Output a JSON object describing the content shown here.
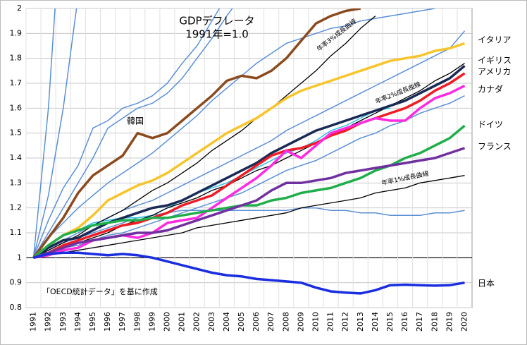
{
  "chart_data": {
    "type": "line",
    "title": "GDPデフレータ",
    "subtitle": "1991年=1.0",
    "source_note": "「OECD統計データ」を基に作成",
    "categories": [
      "1991",
      "1992",
      "1993",
      "1994",
      "1995",
      "1996",
      "1997",
      "1998",
      "1999",
      "2000",
      "2001",
      "2002",
      "2003",
      "2004",
      "2005",
      "2006",
      "2007",
      "2008",
      "2009",
      "2010",
      "2011",
      "2012",
      "2013",
      "2014",
      "2015",
      "2016",
      "2017",
      "2018",
      "2019",
      "2020"
    ],
    "ylim": [
      0.8,
      2
    ],
    "yticks": [
      0.8,
      0.9,
      1,
      1.1,
      1.2,
      1.3,
      1.4,
      1.5,
      1.6,
      1.7,
      1.8,
      1.9,
      2
    ],
    "grid": true,
    "hline": 1,
    "series": [
      {
        "color": "#5b8fd6",
        "values": [
          1,
          1.6,
          2.5,
          null,
          null,
          null,
          null,
          null,
          null,
          null,
          null,
          null,
          null,
          null,
          null,
          null,
          null,
          null,
          null,
          null,
          null,
          null,
          null,
          null,
          null,
          null,
          null,
          null,
          null,
          null
        ]
      },
      {
        "color": "#5b8fd6",
        "values": [
          1,
          1.25,
          1.6,
          2.05,
          null,
          null,
          null,
          null,
          null,
          null,
          null,
          null,
          null,
          null,
          null,
          null,
          null,
          null,
          null,
          null,
          null,
          null,
          null,
          null,
          null,
          null,
          null,
          null,
          null,
          null
        ]
      },
      {
        "color": "#5b8fd6",
        "values": [
          1,
          1.15,
          1.28,
          1.37,
          1.52,
          1.55,
          1.6,
          1.62,
          1.65,
          1.7,
          1.78,
          1.85,
          1.95,
          2.05,
          null,
          null,
          null,
          null,
          null,
          null,
          null,
          null,
          null,
          null,
          null,
          null,
          null,
          null,
          null,
          null
        ]
      },
      {
        "color": "#5b8fd6",
        "values": [
          1,
          1.1,
          1.2,
          1.3,
          1.4,
          1.52,
          1.56,
          1.6,
          1.62,
          1.66,
          1.72,
          1.8,
          1.88,
          1.97,
          2.05,
          null,
          null,
          null,
          null,
          null,
          null,
          null,
          null,
          null,
          null,
          null,
          null,
          null,
          null,
          null
        ]
      },
      {
        "color": "#5b8fd6",
        "values": [
          1,
          1.08,
          1.14,
          1.2,
          1.25,
          1.3,
          1.34,
          1.38,
          1.42,
          1.47,
          1.52,
          1.57,
          1.63,
          1.68,
          1.73,
          1.78,
          1.82,
          1.86,
          1.88,
          1.9,
          1.92,
          1.93,
          1.95,
          1.96,
          1.97,
          1.98,
          1.99,
          2,
          null,
          null
        ]
      },
      {
        "color": "#5b8fd6",
        "values": [
          1,
          1.04,
          1.07,
          1.1,
          1.13,
          1.16,
          1.19,
          1.21,
          1.23,
          1.26,
          1.29,
          1.32,
          1.35,
          1.38,
          1.41,
          1.44,
          1.47,
          1.51,
          1.54,
          1.57,
          1.6,
          1.63,
          1.66,
          1.69,
          1.72,
          1.75,
          1.78,
          1.81,
          1.84,
          1.91
        ]
      },
      {
        "color": "#5b8fd6",
        "values": [
          1,
          1.03,
          1.06,
          1.08,
          1.1,
          1.12,
          1.14,
          1.16,
          1.17,
          1.18,
          1.19,
          1.19,
          1.19,
          1.19,
          1.19,
          1.19,
          1.19,
          1.19,
          1.2,
          1.2,
          1.19,
          1.19,
          1.18,
          1.18,
          1.17,
          1.17,
          1.17,
          1.18,
          1.18,
          1.19
        ]
      },
      {
        "color": "#5b8fd6",
        "values": [
          1,
          1.02,
          1.04,
          1.05,
          1.07,
          1.09,
          1.1,
          1.12,
          1.14,
          1.16,
          1.18,
          1.2,
          1.22,
          1.24,
          1.26,
          1.29,
          1.32,
          1.35,
          1.37,
          1.39,
          1.42,
          1.45,
          1.48,
          1.5,
          1.53,
          1.55,
          1.58,
          1.6,
          1.62,
          1.65
        ]
      },
      {
        "color": "#2ec4e6",
        "values": [
          1,
          1.05,
          1.09,
          1.11,
          1.14,
          1.15,
          1.16,
          1.16,
          1.17,
          1.2,
          1.23,
          1.26,
          1.28,
          1.3,
          1.33,
          1.36,
          1.39,
          1.42,
          1.44,
          1.47,
          1.51,
          1.53,
          1.56,
          1.59,
          1.6,
          null,
          null,
          null,
          null,
          null
        ]
      },
      {
        "name": "年率3%成長曲線",
        "color": "#000000",
        "values": [
          1,
          1.03,
          1.06,
          1.09,
          1.13,
          1.16,
          1.19,
          1.23,
          1.27,
          1.3,
          1.34,
          1.38,
          1.43,
          1.47,
          1.51,
          1.56,
          1.6,
          1.65,
          1.7,
          1.75,
          1.81,
          1.86,
          1.92,
          1.97,
          null,
          null,
          null,
          null,
          null,
          null
        ]
      },
      {
        "name": "年率2%成長曲線",
        "color": "#000000",
        "values": [
          1,
          1.02,
          1.04,
          1.06,
          1.08,
          1.1,
          1.13,
          1.15,
          1.17,
          1.2,
          1.22,
          1.24,
          1.27,
          1.29,
          1.32,
          1.35,
          1.37,
          1.4,
          1.43,
          1.46,
          1.49,
          1.52,
          1.55,
          1.58,
          1.61,
          1.64,
          1.67,
          1.71,
          1.74,
          1.78
        ]
      },
      {
        "name": "年率1%成長曲線",
        "color": "#000000",
        "values": [
          1,
          1.01,
          1.02,
          1.03,
          1.04,
          1.05,
          1.06,
          1.07,
          1.08,
          1.09,
          1.1,
          1.12,
          1.13,
          1.14,
          1.15,
          1.16,
          1.17,
          1.18,
          1.2,
          1.21,
          1.22,
          1.23,
          1.24,
          1.26,
          1.27,
          1.28,
          1.3,
          1.31,
          1.32,
          1.33
        ]
      },
      {
        "name": "韓国",
        "color": "#8b4a1e",
        "values": [
          1,
          1.08,
          1.16,
          1.26,
          1.33,
          1.37,
          1.41,
          1.5,
          1.48,
          1.5,
          1.55,
          1.6,
          1.65,
          1.71,
          1.73,
          1.72,
          1.75,
          1.8,
          1.87,
          1.94,
          1.97,
          1.99,
          2,
          null,
          null,
          null,
          null,
          null,
          null,
          null
        ]
      },
      {
        "name": "イタリア",
        "color": "#f7c52b",
        "values": [
          1,
          1.05,
          1.09,
          1.12,
          1.17,
          1.23,
          1.26,
          1.29,
          1.31,
          1.34,
          1.38,
          1.42,
          1.46,
          1.5,
          1.53,
          1.56,
          1.6,
          1.64,
          1.67,
          1.69,
          1.71,
          1.73,
          1.75,
          1.77,
          1.79,
          1.8,
          1.81,
          1.83,
          1.84,
          1.86
        ]
      },
      {
        "name": "イギリス",
        "color": "#1a2a55",
        "values": [
          1,
          1.04,
          1.07,
          1.08,
          1.11,
          1.14,
          1.16,
          1.18,
          1.2,
          1.21,
          1.23,
          1.26,
          1.29,
          1.32,
          1.35,
          1.38,
          1.42,
          1.45,
          1.48,
          1.51,
          1.53,
          1.55,
          1.57,
          1.59,
          1.61,
          1.63,
          1.66,
          1.69,
          1.72,
          1.77
        ]
      },
      {
        "name": "アメリカ",
        "color": "#ee1c25",
        "values": [
          1,
          1.02,
          1.05,
          1.07,
          1.09,
          1.11,
          1.13,
          1.14,
          1.16,
          1.18,
          1.21,
          1.23,
          1.25,
          1.29,
          1.33,
          1.37,
          1.41,
          1.43,
          1.44,
          1.46,
          1.49,
          1.51,
          1.54,
          1.56,
          1.58,
          1.6,
          1.63,
          1.67,
          1.7,
          1.74
        ]
      },
      {
        "name": "カナダ",
        "color": "#ff2be0",
        "values": [
          1,
          1.01,
          1.03,
          1.04,
          1.07,
          1.08,
          1.09,
          1.08,
          1.1,
          1.14,
          1.15,
          1.16,
          1.2,
          1.24,
          1.28,
          1.32,
          1.37,
          1.43,
          1.4,
          1.45,
          1.5,
          1.52,
          1.54,
          1.56,
          1.55,
          1.55,
          1.6,
          1.64,
          1.66,
          1.69
        ]
      },
      {
        "name": "ドイツ",
        "color": "#1fae4a",
        "values": [
          1,
          1.05,
          1.09,
          1.11,
          1.13,
          1.14,
          1.15,
          1.15,
          1.16,
          1.16,
          1.17,
          1.18,
          1.19,
          1.2,
          1.21,
          1.21,
          1.23,
          1.24,
          1.26,
          1.27,
          1.28,
          1.3,
          1.32,
          1.35,
          1.37,
          1.4,
          1.42,
          1.45,
          1.48,
          1.53
        ]
      },
      {
        "name": "フランス",
        "color": "#7030a0",
        "values": [
          1,
          1.02,
          1.04,
          1.06,
          1.07,
          1.08,
          1.09,
          1.1,
          1.1,
          1.11,
          1.13,
          1.15,
          1.17,
          1.19,
          1.21,
          1.23,
          1.27,
          1.3,
          1.3,
          1.31,
          1.32,
          1.34,
          1.35,
          1.36,
          1.37,
          1.38,
          1.39,
          1.4,
          1.42,
          1.44
        ]
      },
      {
        "name": "日本",
        "color": "#1a2ee0",
        "values": [
          1,
          1.015,
          1.02,
          1.02,
          1.015,
          1.01,
          1.015,
          1.01,
          1,
          0.985,
          0.97,
          0.955,
          0.94,
          0.93,
          0.925,
          0.915,
          0.91,
          0.905,
          0.9,
          0.88,
          0.865,
          0.86,
          0.857,
          0.87,
          0.89,
          0.892,
          0.89,
          0.888,
          0.89,
          0.9
        ]
      }
    ]
  }
}
